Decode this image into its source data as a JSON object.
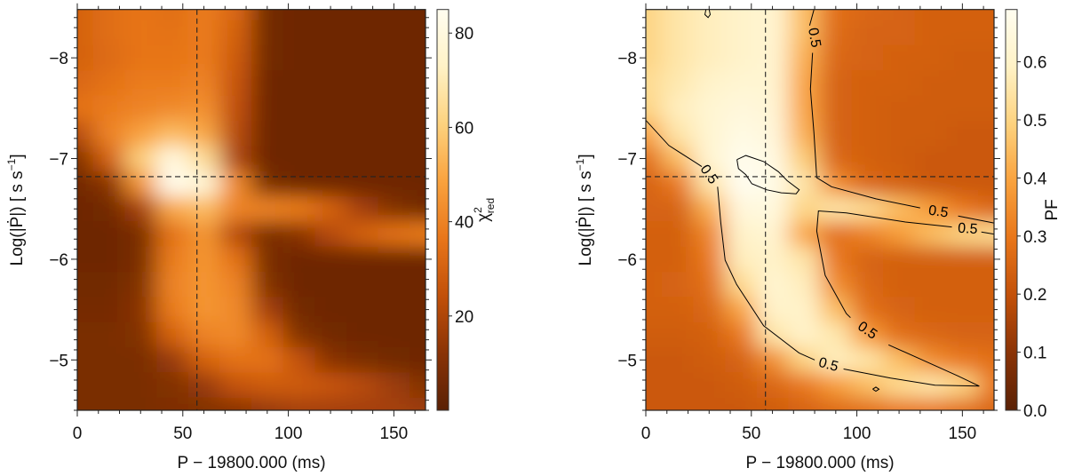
{
  "colormap": [
    "#5a2105",
    "#8a3306",
    "#c25009",
    "#e8761a",
    "#f9a23e",
    "#fdd27e",
    "#fff2c6",
    "#fffdf0"
  ],
  "chart_data": [
    {
      "type": "heatmap",
      "title": "",
      "xlabel": "P − 19800.000 (ms)",
      "ylabel": {
        "main": "Log(|Ṗ|) [ s s",
        "sup": "−1",
        "end": "]"
      },
      "xlim": [
        0,
        165
      ],
      "ylim": [
        -8.48,
        -4.5
      ],
      "xticks": [
        0,
        50,
        100,
        150
      ],
      "xtick_labels": [
        "0",
        "50",
        "100",
        "150"
      ],
      "yticks": [
        -8,
        -7,
        -6,
        -5
      ],
      "ytick_labels": [
        "−8",
        "−7",
        "−6",
        "−5"
      ],
      "reference_lines": {
        "x": 56.7,
        "y": -6.82
      },
      "colorbar": {
        "label": {
          "main": "χ",
          "sup": "2",
          "sub": "red"
        },
        "range": [
          0,
          85
        ],
        "ticks": [
          20,
          40,
          60,
          80
        ],
        "tick_labels": [
          "20",
          "40",
          "60",
          "80"
        ]
      },
      "x": [
        0,
        15,
        30,
        45,
        60,
        75,
        90,
        105,
        120,
        135,
        150,
        165
      ],
      "y": [
        -8.5,
        -8.25,
        -8.0,
        -7.75,
        -7.5,
        -7.25,
        -7.0,
        -6.75,
        -6.5,
        -6.25,
        -6.0,
        -5.75,
        -5.5,
        -5.25,
        -5.0,
        -4.75,
        -4.5
      ],
      "z": [
        [
          30,
          34,
          36,
          34,
          38,
          32,
          6,
          5,
          5,
          5,
          5,
          5
        ],
        [
          30,
          34,
          36,
          35,
          38,
          30,
          6,
          5,
          5,
          5,
          5,
          5
        ],
        [
          30,
          33,
          36,
          36,
          38,
          28,
          6,
          5,
          5,
          5,
          5,
          5
        ],
        [
          32,
          35,
          38,
          38,
          40,
          26,
          5,
          5,
          5,
          5,
          5,
          5
        ],
        [
          35,
          38,
          40,
          42,
          44,
          24,
          5,
          5,
          5,
          5,
          5,
          5
        ],
        [
          22,
          40,
          48,
          55,
          50,
          22,
          5,
          5,
          5,
          5,
          5,
          5
        ],
        [
          10,
          30,
          60,
          80,
          65,
          20,
          5,
          5,
          5,
          5,
          5,
          5
        ],
        [
          6,
          12,
          45,
          84,
          78,
          42,
          8,
          5,
          5,
          5,
          5,
          5
        ],
        [
          5,
          6,
          18,
          50,
          55,
          40,
          40,
          38,
          30,
          18,
          10,
          6
        ],
        [
          5,
          5,
          8,
          35,
          45,
          22,
          8,
          12,
          22,
          30,
          35,
          38
        ],
        [
          5,
          5,
          8,
          38,
          45,
          35,
          8,
          5,
          5,
          5,
          5,
          5
        ],
        [
          6,
          6,
          10,
          40,
          45,
          40,
          10,
          5,
          5,
          5,
          5,
          5
        ],
        [
          7,
          7,
          12,
          38,
          45,
          42,
          18,
          6,
          5,
          5,
          5,
          5
        ],
        [
          8,
          8,
          10,
          30,
          40,
          42,
          30,
          10,
          6,
          5,
          5,
          5
        ],
        [
          8,
          8,
          8,
          15,
          30,
          35,
          35,
          25,
          12,
          8,
          6,
          5
        ],
        [
          8,
          8,
          8,
          10,
          15,
          25,
          28,
          28,
          26,
          22,
          16,
          10
        ],
        [
          8,
          8,
          8,
          9,
          10,
          12,
          15,
          18,
          18,
          18,
          18,
          16
        ]
      ]
    },
    {
      "type": "heatmap",
      "title": "",
      "xlabel": "P − 19800.000 (ms)",
      "ylabel": {
        "main": "Log(|Ṗ|) [ s s",
        "sup": "−1",
        "end": "]"
      },
      "xlim": [
        0,
        165
      ],
      "ylim": [
        -8.48,
        -4.5
      ],
      "xticks": [
        0,
        50,
        100,
        150
      ],
      "xtick_labels": [
        "0",
        "50",
        "100",
        "150"
      ],
      "yticks": [
        -8,
        -7,
        -6,
        -5
      ],
      "ytick_labels": [
        "−8",
        "−7",
        "−6",
        "−5"
      ],
      "reference_lines": {
        "x": 56.7,
        "y": -6.82
      },
      "colorbar": {
        "label": {
          "main": "PF",
          "sup": "",
          "sub": ""
        },
        "range": [
          0,
          0.69
        ],
        "ticks": [
          0.0,
          0.1,
          0.2,
          0.3,
          0.4,
          0.5,
          0.6
        ],
        "tick_labels": [
          "0.0",
          "0.1",
          "0.2",
          "0.3",
          "0.4",
          "0.5",
          "0.6"
        ]
      },
      "x": [
        0,
        15,
        30,
        45,
        60,
        75,
        90,
        105,
        120,
        135,
        150,
        165
      ],
      "y": [
        -8.5,
        -8.25,
        -8.0,
        -7.75,
        -7.5,
        -7.25,
        -7.0,
        -6.75,
        -6.5,
        -6.25,
        -6.0,
        -5.75,
        -5.5,
        -5.25,
        -5.0,
        -4.75,
        -4.5
      ],
      "z": [
        [
          0.5,
          0.55,
          0.58,
          0.6,
          0.62,
          0.45,
          0.28,
          0.26,
          0.25,
          0.24,
          0.24,
          0.24
        ],
        [
          0.5,
          0.55,
          0.58,
          0.6,
          0.62,
          0.45,
          0.27,
          0.25,
          0.25,
          0.24,
          0.24,
          0.24
        ],
        [
          0.5,
          0.55,
          0.58,
          0.6,
          0.62,
          0.42,
          0.26,
          0.25,
          0.24,
          0.24,
          0.23,
          0.23
        ],
        [
          0.52,
          0.56,
          0.6,
          0.62,
          0.62,
          0.4,
          0.25,
          0.24,
          0.24,
          0.23,
          0.23,
          0.23
        ],
        [
          0.5,
          0.58,
          0.62,
          0.64,
          0.63,
          0.4,
          0.25,
          0.24,
          0.23,
          0.23,
          0.23,
          0.23
        ],
        [
          0.4,
          0.55,
          0.62,
          0.66,
          0.64,
          0.42,
          0.25,
          0.24,
          0.23,
          0.23,
          0.22,
          0.22
        ],
        [
          0.28,
          0.45,
          0.62,
          0.68,
          0.66,
          0.48,
          0.26,
          0.24,
          0.23,
          0.22,
          0.22,
          0.22
        ],
        [
          0.25,
          0.3,
          0.55,
          0.69,
          0.67,
          0.55,
          0.35,
          0.26,
          0.24,
          0.22,
          0.22,
          0.22
        ],
        [
          0.25,
          0.25,
          0.42,
          0.64,
          0.65,
          0.5,
          0.55,
          0.52,
          0.45,
          0.38,
          0.3,
          0.26
        ],
        [
          0.24,
          0.24,
          0.33,
          0.6,
          0.62,
          0.4,
          0.28,
          0.32,
          0.38,
          0.45,
          0.5,
          0.52
        ],
        [
          0.24,
          0.24,
          0.3,
          0.58,
          0.6,
          0.55,
          0.3,
          0.25,
          0.24,
          0.24,
          0.24,
          0.24
        ],
        [
          0.24,
          0.25,
          0.28,
          0.52,
          0.62,
          0.58,
          0.35,
          0.26,
          0.24,
          0.24,
          0.24,
          0.24
        ],
        [
          0.24,
          0.24,
          0.26,
          0.4,
          0.6,
          0.6,
          0.45,
          0.28,
          0.25,
          0.24,
          0.24,
          0.24
        ],
        [
          0.23,
          0.23,
          0.24,
          0.3,
          0.55,
          0.6,
          0.56,
          0.38,
          0.28,
          0.26,
          0.25,
          0.25
        ],
        [
          0.22,
          0.22,
          0.23,
          0.25,
          0.35,
          0.5,
          0.58,
          0.55,
          0.45,
          0.35,
          0.3,
          0.28
        ],
        [
          0.22,
          0.22,
          0.22,
          0.23,
          0.26,
          0.3,
          0.38,
          0.45,
          0.52,
          0.55,
          0.5,
          0.3
        ],
        [
          0.22,
          0.22,
          0.22,
          0.22,
          0.23,
          0.25,
          0.27,
          0.28,
          0.3,
          0.3,
          0.28,
          0.26
        ]
      ],
      "contours": [
        {
          "level": 0.5,
          "segments": [
            [
              [
                0,
                -7.38
              ],
              [
                10.9,
                -7.13
              ],
              [
                23.6,
                -6.96
              ],
              [
                26.5,
                -6.92
              ]
            ],
            [
              [
                34,
                -6.72
              ],
              [
                35.5,
                -6.37
              ],
              [
                37.6,
                -5.99
              ],
              [
                43,
                -5.75
              ],
              [
                55.8,
                -5.34
              ],
              [
                72.6,
                -5.07
              ],
              [
                80,
                -5.0
              ]
            ],
            [
              [
                93.7,
                -4.91
              ],
              [
                116,
                -4.82
              ],
              [
                137,
                -4.75
              ],
              [
                158,
                -4.74
              ],
              [
                148,
                -4.84
              ],
              [
                130,
                -5.01
              ],
              [
                115,
                -5.15
              ]
            ],
            [
              [
                97,
                -5.42
              ],
              [
                95,
                -5.46
              ],
              [
                85,
                -5.84
              ],
              [
                81,
                -6.28
              ],
              [
                81.8,
                -6.48
              ],
              [
                95,
                -6.46
              ],
              [
                123,
                -6.37
              ],
              [
                145,
                -6.32
              ]
            ],
            [
              [
                159,
                -6.27
              ],
              [
                165,
                -6.25
              ]
            ],
            [
              [
                79.7,
                -8.48
              ],
              [
                77.6,
                -8.32
              ]
            ],
            [
              [
                79,
                -8.05
              ],
              [
                78,
                -7.69
              ],
              [
                79.7,
                -7.25
              ],
              [
                81,
                -6.81
              ],
              [
                88,
                -6.72
              ],
              [
                109,
                -6.6
              ],
              [
                130,
                -6.51
              ]
            ],
            [
              [
                148,
                -6.43
              ],
              [
                165,
                -6.36
              ]
            ],
            [
              [
                28.5,
                -8.48
              ],
              [
                28,
                -8.43
              ],
              [
                29.5,
                -8.4
              ],
              [
                30.5,
                -8.43
              ],
              [
                30,
                -8.48
              ]
            ],
            [
              [
                107.5,
                -4.71
              ],
              [
                109,
                -4.69
              ],
              [
                110.5,
                -4.71
              ],
              [
                109,
                -4.73
              ],
              [
                107.5,
                -4.71
              ]
            ]
          ],
          "labels": [
            {
              "text": "0.5",
              "x": 79.7,
              "y": -8.2,
              "angle": 80
            },
            {
              "text": "0.5",
              "x": 29.8,
              "y": -6.84,
              "angle": 55
            },
            {
              "text": "0.5",
              "x": 104.9,
              "y": -5.29,
              "angle": 35
            },
            {
              "text": "0.5",
              "x": 86.5,
              "y": -4.95,
              "angle": 15
            },
            {
              "text": "0.5",
              "x": 138.6,
              "y": -6.47,
              "angle": 8
            },
            {
              "text": "0.5",
              "x": 152.5,
              "y": -6.3,
              "angle": 4
            }
          ]
        },
        {
          "level": 0.65,
          "segments": [
            [
              [
                43.2,
                -6.99
              ],
              [
                47.4,
                -7.03
              ],
              [
                55.8,
                -6.97
              ],
              [
                62.8,
                -6.87
              ],
              [
                67,
                -6.78
              ],
              [
                72.7,
                -6.69
              ],
              [
                71.2,
                -6.65
              ],
              [
                64.2,
                -6.66
              ],
              [
                57.2,
                -6.69
              ],
              [
                50.2,
                -6.75
              ],
              [
                47.4,
                -6.84
              ],
              [
                43.9,
                -6.9
              ],
              [
                43.2,
                -6.99
              ]
            ]
          ],
          "labels": []
        }
      ]
    }
  ]
}
